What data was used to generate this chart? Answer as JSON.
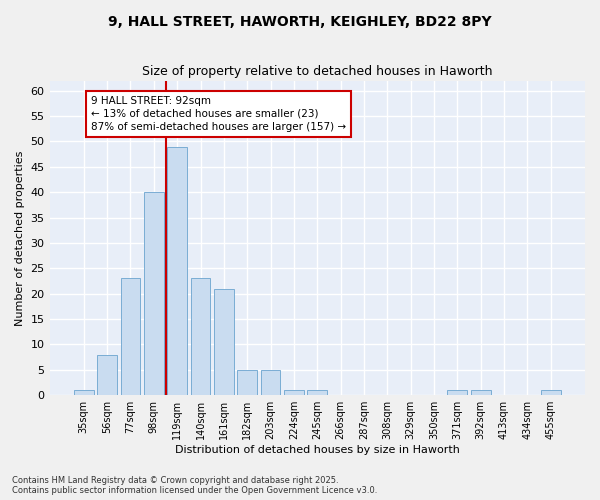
{
  "title_line1": "9, HALL STREET, HAWORTH, KEIGHLEY, BD22 8PY",
  "title_line2": "Size of property relative to detached houses in Haworth",
  "xlabel": "Distribution of detached houses by size in Haworth",
  "ylabel": "Number of detached properties",
  "footer": "Contains HM Land Registry data © Crown copyright and database right 2025.\nContains public sector information licensed under the Open Government Licence v3.0.",
  "bar_color": "#c9dcf0",
  "bar_edge_color": "#7aadd4",
  "background_color": "#e8eef8",
  "grid_color": "#ffffff",
  "fig_background": "#f0f0f0",
  "categories": [
    "35sqm",
    "56sqm",
    "77sqm",
    "98sqm",
    "119sqm",
    "140sqm",
    "161sqm",
    "182sqm",
    "203sqm",
    "224sqm",
    "245sqm",
    "266sqm",
    "287sqm",
    "308sqm",
    "329sqm",
    "350sqm",
    "371sqm",
    "392sqm",
    "413sqm",
    "434sqm",
    "455sqm"
  ],
  "values": [
    1,
    8,
    23,
    40,
    49,
    23,
    21,
    5,
    5,
    1,
    1,
    0,
    0,
    0,
    0,
    0,
    1,
    1,
    0,
    0,
    1
  ],
  "ylim": [
    0,
    62
  ],
  "yticks": [
    0,
    5,
    10,
    15,
    20,
    25,
    30,
    35,
    40,
    45,
    50,
    55,
    60
  ],
  "annotation_text": "9 HALL STREET: 92sqm\n← 13% of detached houses are smaller (23)\n87% of semi-detached houses are larger (157) →",
  "vline_x_index": 3.5,
  "vline_color": "#cc0000",
  "annotation_box_color": "#cc0000",
  "title_fontsize": 10,
  "subtitle_fontsize": 9,
  "ylabel_fontsize": 8,
  "xlabel_fontsize": 8,
  "tick_fontsize": 7,
  "footer_fontsize": 6,
  "annot_fontsize": 7.5
}
